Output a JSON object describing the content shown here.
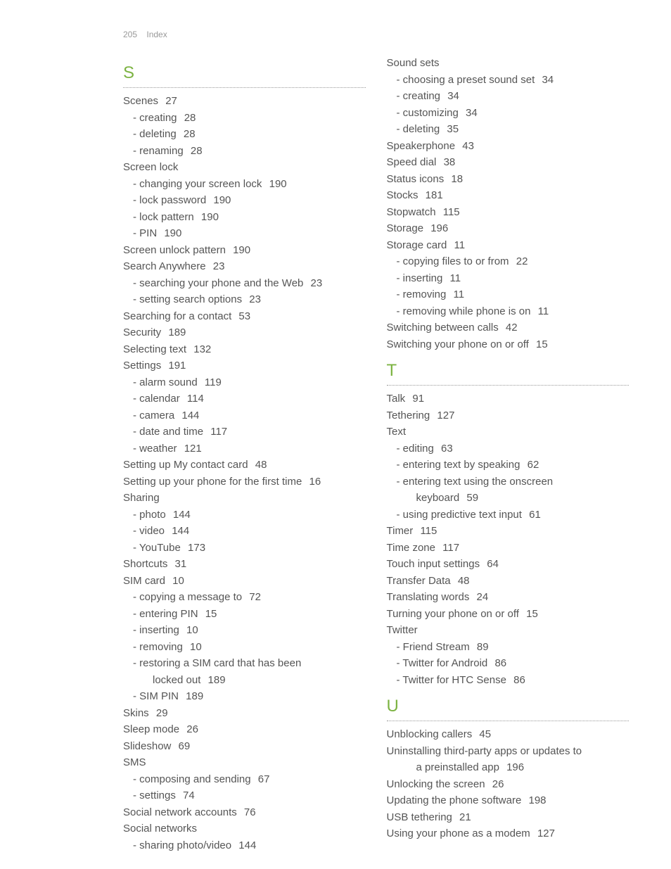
{
  "header": {
    "page": "205",
    "title": "Index"
  },
  "left": {
    "sections": [
      {
        "letter": "S",
        "items": [
          {
            "t": "Scenes",
            "p": "27"
          },
          {
            "t": "- creating",
            "p": "28",
            "sub": 1
          },
          {
            "t": "- deleting",
            "p": "28",
            "sub": 1
          },
          {
            "t": "- renaming",
            "p": "28",
            "sub": 1
          },
          {
            "t": "Screen lock",
            "p": ""
          },
          {
            "t": "- changing your screen lock",
            "p": "190",
            "sub": 1
          },
          {
            "t": "- lock password",
            "p": "190",
            "sub": 1
          },
          {
            "t": "- lock pattern",
            "p": "190",
            "sub": 1
          },
          {
            "t": "- PIN",
            "p": "190",
            "sub": 1
          },
          {
            "t": "Screen unlock pattern",
            "p": "190"
          },
          {
            "t": "Search Anywhere",
            "p": "23"
          },
          {
            "t": "- searching your phone and the Web",
            "p": "23",
            "sub": 1
          },
          {
            "t": "- setting search options",
            "p": "23",
            "sub": 1
          },
          {
            "t": "Searching for a contact",
            "p": "53"
          },
          {
            "t": "Security",
            "p": "189"
          },
          {
            "t": "Selecting text",
            "p": "132"
          },
          {
            "t": "Settings",
            "p": "191"
          },
          {
            "t": "- alarm sound",
            "p": "119",
            "sub": 1
          },
          {
            "t": "- calendar",
            "p": "114",
            "sub": 1
          },
          {
            "t": "- camera",
            "p": "144",
            "sub": 1
          },
          {
            "t": "- date and time",
            "p": "117",
            "sub": 1
          },
          {
            "t": "- weather",
            "p": "121",
            "sub": 1
          },
          {
            "t": "Setting up My contact card",
            "p": "48"
          },
          {
            "t": "Setting up your phone for the first time",
            "p": "16"
          },
          {
            "t": "Sharing",
            "p": ""
          },
          {
            "t": "- photo",
            "p": "144",
            "sub": 1
          },
          {
            "t": "- video",
            "p": "144",
            "sub": 1
          },
          {
            "t": "- YouTube",
            "p": "173",
            "sub": 1
          },
          {
            "t": "Shortcuts",
            "p": "31"
          },
          {
            "t": "SIM card",
            "p": "10"
          },
          {
            "t": "- copying a message to",
            "p": "72",
            "sub": 1
          },
          {
            "t": "- entering PIN",
            "p": "15",
            "sub": 1
          },
          {
            "t": "- inserting",
            "p": "10",
            "sub": 1
          },
          {
            "t": "- removing",
            "p": "10",
            "sub": 1
          },
          {
            "t": "- restoring a SIM card that has been",
            "p": "",
            "sub": 1
          },
          {
            "t": "locked out",
            "p": "189",
            "sub": 2
          },
          {
            "t": "- SIM PIN",
            "p": "189",
            "sub": 1
          },
          {
            "t": "Skins",
            "p": "29"
          },
          {
            "t": "Sleep mode",
            "p": "26"
          },
          {
            "t": "Slideshow",
            "p": "69"
          },
          {
            "t": "SMS",
            "p": ""
          },
          {
            "t": "- composing and sending",
            "p": "67",
            "sub": 1
          },
          {
            "t": "- settings",
            "p": "74",
            "sub": 1
          },
          {
            "t": "Social network accounts",
            "p": "76"
          },
          {
            "t": "Social networks",
            "p": ""
          },
          {
            "t": "- sharing photo/video",
            "p": "144",
            "sub": 1
          }
        ]
      }
    ]
  },
  "right": {
    "sections": [
      {
        "letter": null,
        "items": [
          {
            "t": "Sound sets",
            "p": ""
          },
          {
            "t": "- choosing a preset sound set",
            "p": "34",
            "sub": 1
          },
          {
            "t": "- creating",
            "p": "34",
            "sub": 1
          },
          {
            "t": "- customizing",
            "p": "34",
            "sub": 1
          },
          {
            "t": "- deleting",
            "p": "35",
            "sub": 1
          },
          {
            "t": "Speakerphone",
            "p": "43"
          },
          {
            "t": "Speed dial",
            "p": "38"
          },
          {
            "t": "Status icons",
            "p": "18"
          },
          {
            "t": "Stocks",
            "p": "181"
          },
          {
            "t": "Stopwatch",
            "p": "115"
          },
          {
            "t": "Storage",
            "p": "196"
          },
          {
            "t": "Storage card",
            "p": "11"
          },
          {
            "t": "- copying files to or from",
            "p": "22",
            "sub": 1
          },
          {
            "t": "- inserting",
            "p": "11",
            "sub": 1
          },
          {
            "t": "- removing",
            "p": "11",
            "sub": 1
          },
          {
            "t": "- removing while phone is on",
            "p": "11",
            "sub": 1
          },
          {
            "t": "Switching between calls",
            "p": "42"
          },
          {
            "t": "Switching your phone on or off",
            "p": "15"
          }
        ]
      },
      {
        "letter": "T",
        "items": [
          {
            "t": "Talk",
            "p": "91"
          },
          {
            "t": "Tethering",
            "p": "127"
          },
          {
            "t": "Text",
            "p": ""
          },
          {
            "t": "- editing",
            "p": "63",
            "sub": 1
          },
          {
            "t": "- entering text by speaking",
            "p": "62",
            "sub": 1
          },
          {
            "t": "- entering text using the onscreen",
            "p": "",
            "sub": 1
          },
          {
            "t": "keyboard",
            "p": "59",
            "sub": 2
          },
          {
            "t": "- using predictive text input",
            "p": "61",
            "sub": 1
          },
          {
            "t": "Timer",
            "p": "115"
          },
          {
            "t": "Time zone",
            "p": "117"
          },
          {
            "t": "Touch input settings",
            "p": "64"
          },
          {
            "t": "Transfer Data",
            "p": "48"
          },
          {
            "t": "Translating words",
            "p": "24"
          },
          {
            "t": "Turning your phone on or off",
            "p": "15"
          },
          {
            "t": "Twitter",
            "p": ""
          },
          {
            "t": "- Friend Stream",
            "p": "89",
            "sub": 1
          },
          {
            "t": "- Twitter for Android",
            "p": "86",
            "sub": 1
          },
          {
            "t": "- Twitter for HTC Sense",
            "p": "86",
            "sub": 1
          }
        ]
      },
      {
        "letter": "U",
        "items": [
          {
            "t": "Unblocking callers",
            "p": "45"
          },
          {
            "t": "Uninstalling third-party apps or updates to",
            "p": ""
          },
          {
            "t": "a preinstalled app",
            "p": "196",
            "sub": 2
          },
          {
            "t": "Unlocking the screen",
            "p": "26"
          },
          {
            "t": "Updating the phone software",
            "p": "198"
          },
          {
            "t": "USB tethering",
            "p": "21"
          },
          {
            "t": "Using your phone as a modem",
            "p": "127"
          }
        ]
      }
    ]
  }
}
